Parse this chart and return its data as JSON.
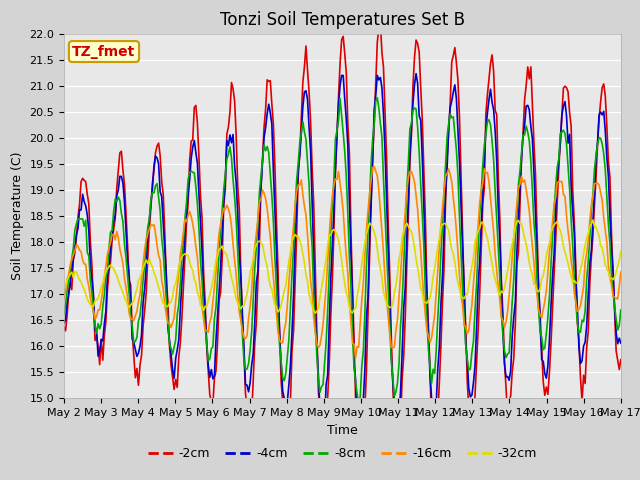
{
  "title": "Tonzi Soil Temperatures Set B",
  "xlabel": "Time",
  "ylabel": "Soil Temperature (C)",
  "ylim": [
    15.0,
    22.0
  ],
  "yticks": [
    15.0,
    15.5,
    16.0,
    16.5,
    17.0,
    17.5,
    18.0,
    18.5,
    19.0,
    19.5,
    20.0,
    20.5,
    21.0,
    21.5,
    22.0
  ],
  "series_colors": [
    "#dd0000",
    "#0000cc",
    "#00aa00",
    "#ff8800",
    "#dddd00"
  ],
  "series_labels": [
    "-2cm",
    "-4cm",
    "-8cm",
    "-16cm",
    "-32cm"
  ],
  "xtick_labels": [
    "May 2",
    "May 3",
    "May 4",
    "May 5",
    "May 6",
    "May 7",
    "May 8",
    "May 9",
    "May 10",
    "May 11",
    "May 12",
    "May 13",
    "May 14",
    "May 15",
    "May 16",
    "May 17"
  ],
  "annotation_text": "TZ_fmet",
  "annotation_color": "#cc0000",
  "annotation_bg": "#ffffcc",
  "annotation_edge": "#cc9900",
  "fig_bg": "#d4d4d4",
  "plot_bg": "#e8e8e8",
  "title_fontsize": 12,
  "axis_fontsize": 9,
  "tick_fontsize": 8,
  "legend_fontsize": 9,
  "line_width": 1.2
}
